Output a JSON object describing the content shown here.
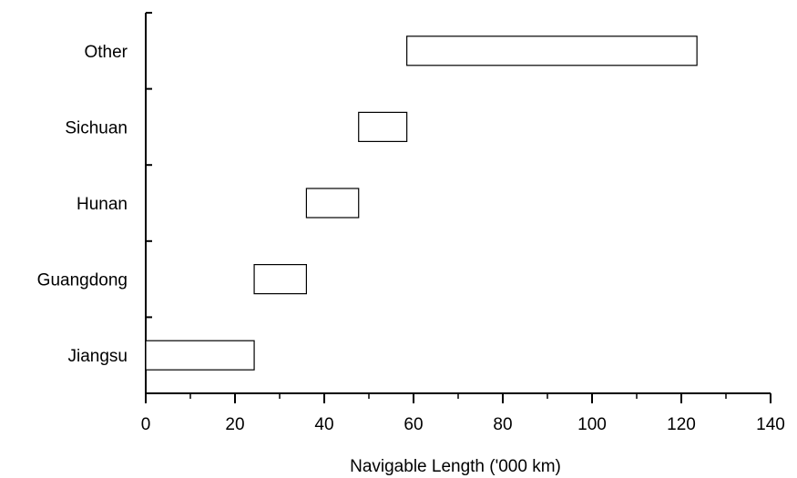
{
  "chart_data": {
    "type": "bar",
    "orientation": "horizontal",
    "subtype": "waterfall-range",
    "categories": [
      "Jiangsu",
      "Guangdong",
      "Hunan",
      "Sichuan",
      "Other"
    ],
    "series": [
      {
        "ranges": [
          [
            0,
            24.3
          ],
          [
            24.3,
            36.0
          ],
          [
            36.0,
            47.7
          ],
          [
            47.7,
            58.5
          ],
          [
            58.5,
            123.5
          ]
        ]
      }
    ],
    "xlabel": "Navigable Length ('000 km)",
    "ylabel": "",
    "title": "",
    "xlim": [
      0,
      140
    ],
    "xticks": [
      "0",
      "20",
      "40",
      "60",
      "80",
      "100",
      "120",
      "140"
    ],
    "grid": false,
    "legend": "none",
    "colors": {
      "bar_fill": "#ffffff",
      "bar_stroke": "#000000",
      "axis": "#000000"
    }
  }
}
